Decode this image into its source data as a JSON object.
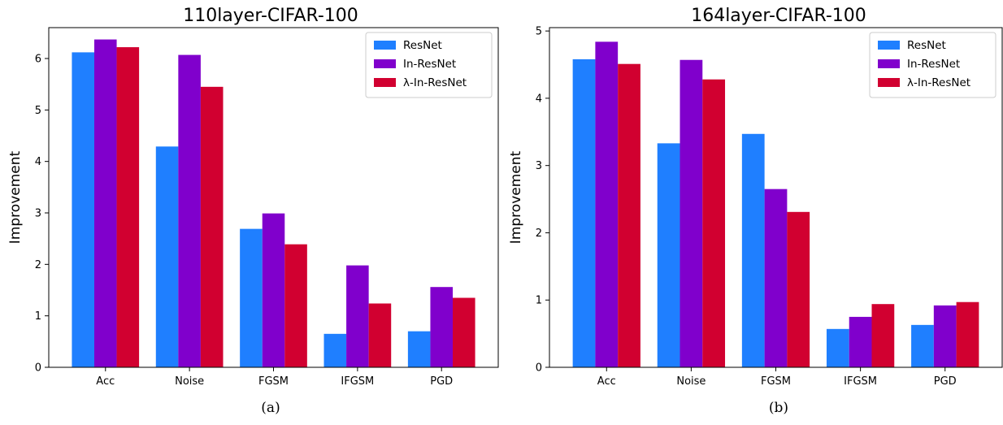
{
  "chart_data": [
    {
      "type": "bar",
      "title": "110layer-CIFAR-100",
      "caption": "(a)",
      "xlabel": "",
      "ylabel": "Improvement",
      "ylim": [
        0,
        6.6
      ],
      "yticks": [
        0,
        1,
        2,
        3,
        4,
        5,
        6
      ],
      "grid": false,
      "legend_position": "top-right",
      "categories": [
        "Acc",
        "Noise",
        "FGSM",
        "IFGSM",
        "PGD"
      ],
      "series": [
        {
          "name": "ResNet",
          "color": "#1f7fff",
          "values": [
            6.12,
            4.29,
            2.69,
            0.65,
            0.7
          ]
        },
        {
          "name": "In-ResNet",
          "color": "#8000cc",
          "values": [
            6.37,
            6.07,
            2.99,
            1.98,
            1.56
          ]
        },
        {
          "name": "λ-In-ResNet",
          "color": "#d10030",
          "values": [
            6.22,
            5.45,
            2.39,
            1.24,
            1.35
          ]
        }
      ]
    },
    {
      "type": "bar",
      "title": "164layer-CIFAR-100",
      "caption": "(b)",
      "xlabel": "",
      "ylabel": "Improvement",
      "ylim": [
        0,
        5.05
      ],
      "yticks": [
        0,
        1,
        2,
        3,
        4,
        5
      ],
      "grid": false,
      "legend_position": "top-right",
      "categories": [
        "Acc",
        "Noise",
        "FGSM",
        "IFGSM",
        "PGD"
      ],
      "series": [
        {
          "name": "ResNet",
          "color": "#1f7fff",
          "values": [
            4.58,
            3.33,
            3.47,
            0.57,
            0.63
          ]
        },
        {
          "name": "In-ResNet",
          "color": "#8000cc",
          "values": [
            4.84,
            4.57,
            2.65,
            0.75,
            0.92
          ]
        },
        {
          "name": "λ-In-ResNet",
          "color": "#d10030",
          "values": [
            4.51,
            4.28,
            2.31,
            0.94,
            0.97
          ]
        }
      ]
    }
  ]
}
